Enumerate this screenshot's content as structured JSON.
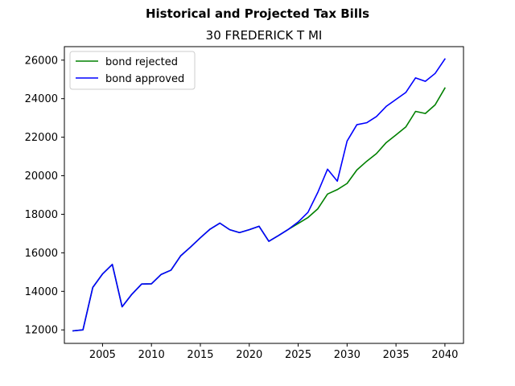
{
  "chart_data": {
    "type": "line",
    "suptitle": "Historical and Projected Tax Bills",
    "title": "30 FREDERICK T MI",
    "xlabel": "",
    "ylabel": "",
    "xlim": [
      2001.1,
      2041.9
    ],
    "ylim": [
      11300,
      26700
    ],
    "xticks": [
      2005,
      2010,
      2015,
      2020,
      2025,
      2030,
      2035,
      2040
    ],
    "yticks": [
      12000,
      14000,
      16000,
      18000,
      20000,
      22000,
      24000,
      26000
    ],
    "grid": false,
    "legend_position": "upper left",
    "x": [
      2002,
      2003,
      2004,
      2005,
      2006,
      2007,
      2008,
      2009,
      2010,
      2011,
      2012,
      2013,
      2014,
      2015,
      2016,
      2017,
      2018,
      2019,
      2020,
      2021,
      2022,
      2023,
      2024,
      2025,
      2026,
      2027,
      2028,
      2029,
      2030,
      2031,
      2032,
      2033,
      2034,
      2035,
      2036,
      2037,
      2038,
      2039,
      2040
    ],
    "series": [
      {
        "name": "bond rejected",
        "color": "#008000",
        "values": [
          11950,
          12000,
          14200,
          14900,
          15400,
          13200,
          13850,
          14380,
          14390,
          14880,
          15100,
          15850,
          16300,
          16780,
          17230,
          17540,
          17200,
          17050,
          17200,
          17380,
          16600,
          16900,
          17220,
          17520,
          17830,
          18280,
          19050,
          19280,
          19600,
          20300,
          20750,
          21150,
          21720,
          22120,
          22530,
          23340,
          23230,
          23680,
          24550
        ]
      },
      {
        "name": "bond approved",
        "color": "#0000ff",
        "values": [
          11950,
          12000,
          14200,
          14900,
          15400,
          13200,
          13850,
          14380,
          14390,
          14880,
          15100,
          15850,
          16300,
          16780,
          17230,
          17540,
          17200,
          17050,
          17200,
          17380,
          16600,
          16900,
          17220,
          17600,
          18100,
          19130,
          20340,
          19720,
          21800,
          22650,
          22750,
          23070,
          23600,
          23960,
          24320,
          25080,
          24900,
          25310,
          26060
        ]
      }
    ]
  }
}
